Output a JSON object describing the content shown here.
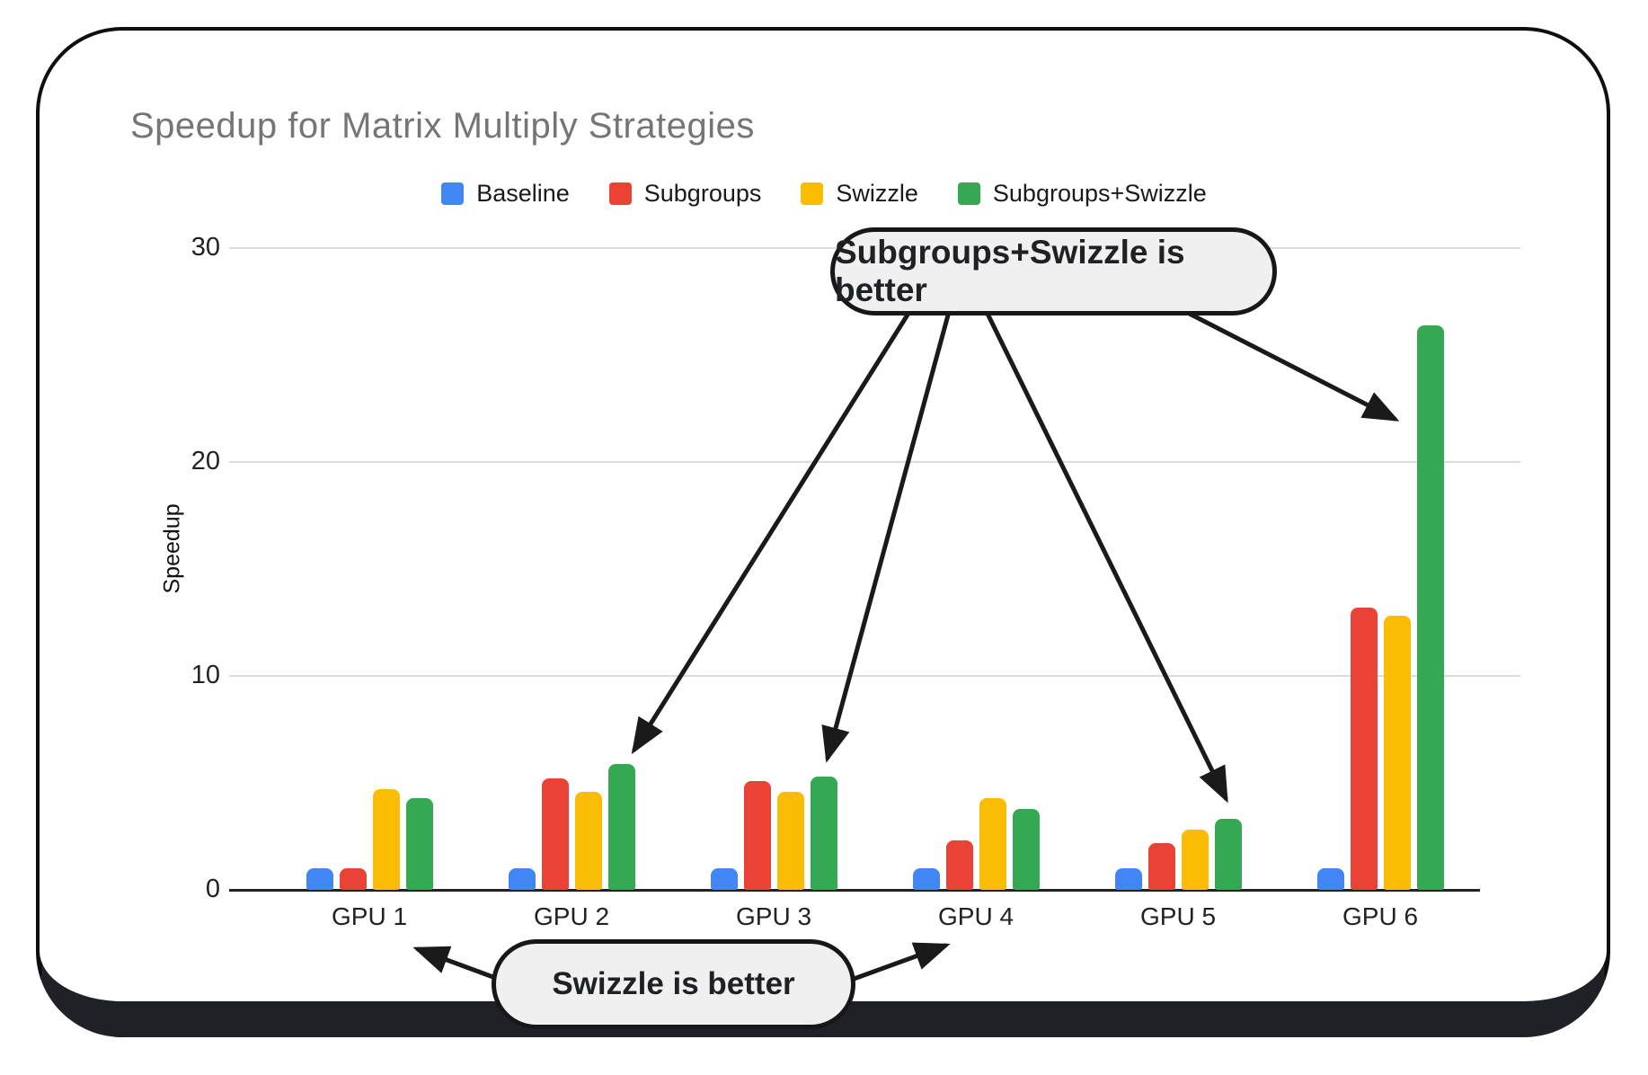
{
  "chart_data": {
    "type": "bar",
    "title": "Speedup for Matrix Multiply Strategies",
    "ylabel": "Speedup",
    "xlabel": "",
    "categories": [
      "GPU 1",
      "GPU 2",
      "GPU 3",
      "GPU 4",
      "GPU 5",
      "GPU 6"
    ],
    "series": [
      {
        "name": "Baseline",
        "color": "#4285F4",
        "values": [
          1.0,
          1.0,
          1.0,
          1.0,
          1.0,
          1.0
        ]
      },
      {
        "name": "Subgroups",
        "color": "#EA4335",
        "values": [
          1.0,
          5.2,
          5.1,
          2.3,
          2.2,
          13.2
        ]
      },
      {
        "name": "Swizzle",
        "color": "#FBBC04",
        "values": [
          4.7,
          4.6,
          4.6,
          4.3,
          2.8,
          12.8
        ]
      },
      {
        "name": "Subgroups+Swizzle",
        "color": "#34A853",
        "values": [
          4.3,
          5.9,
          5.3,
          3.8,
          3.3,
          26.4
        ]
      }
    ],
    "ylim": [
      0,
      30
    ],
    "y_ticks": [
      0,
      10,
      20,
      30
    ],
    "grid": true,
    "legend_position": "top-center",
    "annotations": [
      {
        "text": "Subgroups+Swizzle is better",
        "arrows_to": [
          "GPU 2 Subgroups+Swizzle bar",
          "GPU 3 Subgroups+Swizzle bar",
          "GPU 5 Subgroups+Swizzle bar",
          "GPU 6 Subgroups+Swizzle bar"
        ]
      },
      {
        "text": "Swizzle is better",
        "arrows_to": [
          "GPU 1",
          "GPU 4"
        ]
      }
    ]
  }
}
